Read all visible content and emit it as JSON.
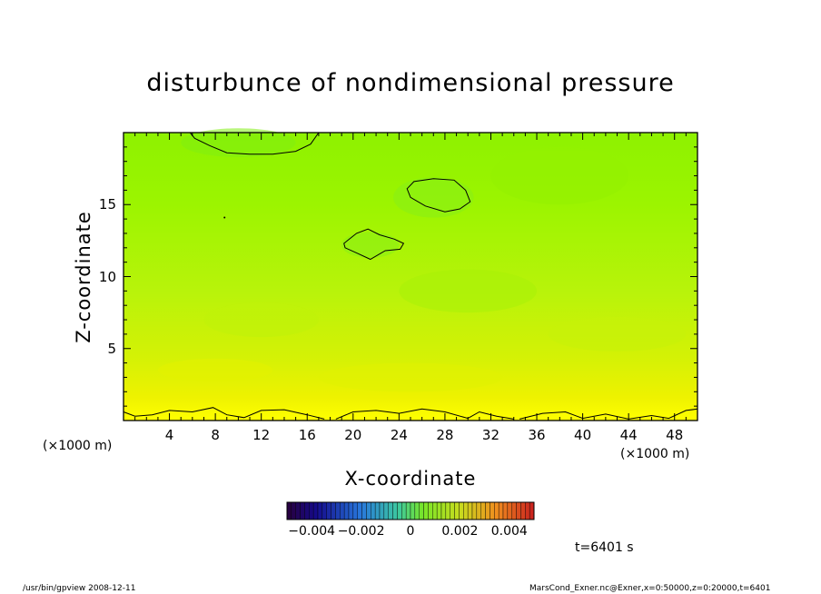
{
  "chart_data": {
    "type": "heatmap",
    "title": "disturbunce of nondimensional pressure",
    "xlabel": "X-coordinate",
    "ylabel": "Z-coordinate",
    "x_unit": "(×1000 m)",
    "x_unit_right": "(×1000 m)",
    "xlim": [
      0,
      50
    ],
    "ylim": [
      0,
      20
    ],
    "x_ticks": [
      "4",
      "8",
      "12",
      "16",
      "20",
      "24",
      "28",
      "32",
      "36",
      "40",
      "44",
      "48"
    ],
    "y_ticks": [
      "5",
      "10",
      "15"
    ],
    "colorbar": {
      "range": [
        -0.005,
        0.005
      ],
      "tick_labels": [
        "−0.004",
        "−0.002",
        "0",
        "0.002",
        "0.004"
      ],
      "tick_values": [
        -0.004,
        -0.002,
        0,
        0.002,
        0.004
      ]
    },
    "time_label": "t=6401 s",
    "contour_regions": [
      {
        "name": "top-left low",
        "x_range": [
          6,
          17
        ],
        "z_range": [
          18.5,
          20
        ]
      },
      {
        "name": "upper-right low",
        "x_range": [
          24.5,
          30
        ],
        "z_range": [
          14.5,
          16.5
        ]
      },
      {
        "name": "middle low",
        "x_range": [
          19,
          24
        ],
        "z_range": [
          11.2,
          13.2
        ]
      }
    ],
    "grid": false,
    "legend": "colorbar-bottom"
  },
  "footer": {
    "left": "/usr/bin/gpview   2008-12-11",
    "right": "MarsCond_Exner.nc@Exner,x=0:50000,z=0:20000,t=6401"
  },
  "colors": {
    "field_base": "#8cf500",
    "field_mid": "#b5f20d",
    "field_low": "#f2f200",
    "field_bottom": "#ffff00"
  }
}
